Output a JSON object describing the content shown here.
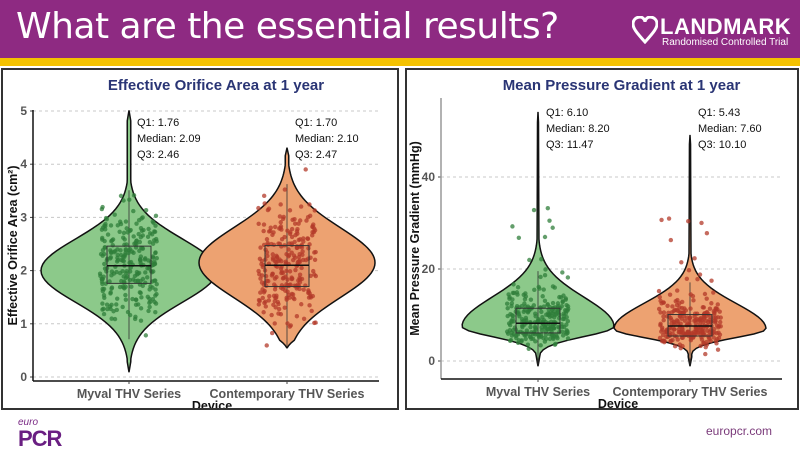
{
  "header": {
    "title": "What are the essential results?",
    "logo_word": "LANDMARK",
    "logo_sub": "Randomised Controlled Trial",
    "colors": {
      "banner": "#8e2a82",
      "stripe": "#f4c200"
    }
  },
  "footer": {
    "brand_prefix": "euro",
    "brand_main": "PCR",
    "url": "europcr.com"
  },
  "chart_data": [
    {
      "type": "violin",
      "title": "Effective Orifice Area at 1 year",
      "xlabel": "Device",
      "ylabel": "Effective Orifice Area (cm²)",
      "ylim": [
        0,
        5
      ],
      "yticks": [
        "0",
        "1",
        "2",
        "3",
        "4",
        "5"
      ],
      "grid": true,
      "categories": [
        "Myval THV Series",
        "Contemporary THV Series"
      ],
      "series": [
        {
          "name": "Myval THV Series",
          "color": "#8cc98a",
          "point_color": "#2f7d3a",
          "q1": 1.76,
          "median": 2.09,
          "q3": 2.46,
          "min": 0.1,
          "max": 5.0,
          "mode": 2.0,
          "annotation": [
            "Q1: 1.76",
            "Median: 2.09",
            "Q3: 2.46"
          ]
        },
        {
          "name": "Contemporary THV Series",
          "color": "#eda271",
          "point_color": "#b33a2a",
          "q1": 1.7,
          "median": 2.1,
          "q3": 2.47,
          "min": 0.55,
          "max": 4.3,
          "mode": 2.15,
          "annotation": [
            "Q1: 1.70",
            "Median: 2.10",
            "Q3: 2.47"
          ]
        }
      ]
    },
    {
      "type": "violin",
      "title": "Mean Pressure Gradient at 1 year",
      "xlabel": "Device",
      "ylabel": "Mean Pressure Gradient (mmHg)",
      "ylim": [
        -4,
        54
      ],
      "yticks": [
        "0",
        "20",
        "40"
      ],
      "grid": true,
      "categories": [
        "Myval THV Series",
        "Contemporary THV Series"
      ],
      "series": [
        {
          "name": "Myval THV Series",
          "color": "#8cc98a",
          "point_color": "#2f7d3a",
          "q1": 6.1,
          "median": 8.2,
          "q3": 11.47,
          "min": -1,
          "max": 54,
          "mode": 7.5,
          "annotation": [
            "Q1: 6.10",
            "Median: 8.20",
            "Q3: 11.47"
          ]
        },
        {
          "name": "Contemporary THV Series",
          "color": "#eda271",
          "point_color": "#b33a2a",
          "q1": 5.43,
          "median": 7.6,
          "q3": 10.1,
          "min": -1,
          "max": 49,
          "mode": 7.0,
          "annotation": [
            "Q1: 5.43",
            "Median: 7.60",
            "Q3: 10.10"
          ]
        }
      ]
    }
  ]
}
